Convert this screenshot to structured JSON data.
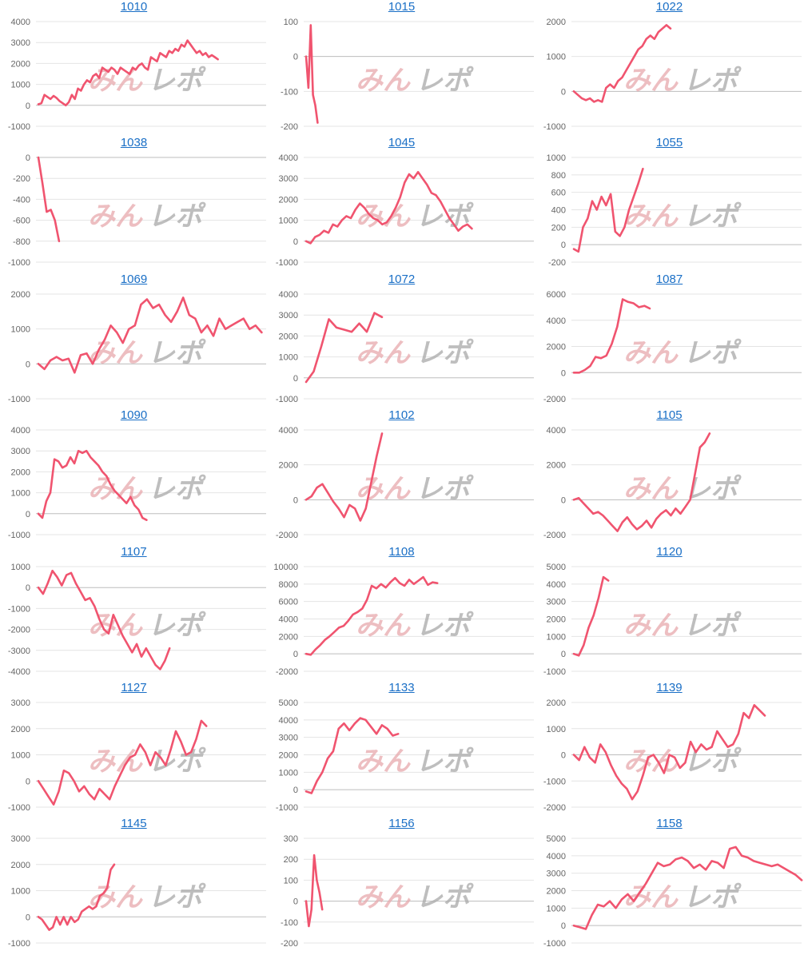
{
  "watermark": {
    "part1": "みん",
    "part2": "レポ",
    "color1": "#e8a9ad",
    "color2": "#a9a9a9"
  },
  "line_color": "#f0546f",
  "title_color": "#1a6fc6",
  "chart_data": [
    {
      "type": "line",
      "title": "1010",
      "yticks": [
        4000,
        3000,
        2000,
        1000,
        0,
        -1000
      ],
      "ylim": [
        -1000,
        4000
      ],
      "values": [
        50,
        100,
        500,
        400,
        300,
        450,
        350,
        200,
        100,
        0,
        150,
        500,
        300,
        800,
        700,
        1000,
        1200,
        1100,
        1400,
        1500,
        1300,
        1800,
        1700,
        1600,
        1800,
        1700,
        1500,
        1800,
        1700,
        1600,
        1500,
        1800,
        1700,
        1900,
        2000,
        1800,
        1700,
        2300,
        2200,
        2100,
        2500,
        2400,
        2300,
        2600,
        2500,
        2700,
        2600,
        2900,
        2800,
        3100,
        2900,
        2700,
        2500,
        2600,
        2400,
        2500,
        2300,
        2400,
        2300,
        2200
      ]
    },
    {
      "type": "line",
      "title": "1015",
      "yticks": [
        100,
        0,
        -100,
        -200
      ],
      "ylim": [
        -200,
        100
      ],
      "values": [
        0,
        -90,
        90,
        -110,
        -140,
        -190
      ]
    },
    {
      "type": "line",
      "title": "1022",
      "yticks": [
        2000,
        1000,
        0,
        -1000
      ],
      "ylim": [
        -1000,
        2000
      ],
      "values": [
        0,
        -100,
        -200,
        -250,
        -200,
        -300,
        -250,
        -300,
        100,
        200,
        100,
        300,
        400,
        600,
        800,
        1000,
        1200,
        1300,
        1500,
        1600,
        1500,
        1700,
        1800,
        1900,
        1800
      ]
    },
    {
      "type": "line",
      "title": "1038",
      "yticks": [
        0,
        -200,
        -400,
        -600,
        -800,
        -1000
      ],
      "ylim": [
        -1000,
        0
      ],
      "values": [
        0,
        -250,
        -520,
        -500,
        -600,
        -800
      ]
    },
    {
      "type": "line",
      "title": "1045",
      "yticks": [
        4000,
        3000,
        2000,
        1000,
        0,
        -1000
      ],
      "ylim": [
        -1000,
        4000
      ],
      "values": [
        0,
        -100,
        200,
        300,
        500,
        400,
        800,
        700,
        1000,
        1200,
        1100,
        1500,
        1800,
        1600,
        1300,
        1100,
        1000,
        800,
        900,
        1200,
        1600,
        2100,
        2800,
        3200,
        3000,
        3300,
        3000,
        2700,
        2300,
        2200,
        1900,
        1500,
        1100,
        800,
        500,
        700,
        800,
        600
      ]
    },
    {
      "type": "line",
      "title": "1055",
      "yticks": [
        1000,
        800,
        600,
        400,
        200,
        0,
        -200
      ],
      "ylim": [
        -200,
        1000
      ],
      "values": [
        -50,
        -80,
        200,
        300,
        500,
        400,
        550,
        450,
        580,
        150,
        100,
        200,
        400,
        550,
        700,
        870
      ]
    },
    {
      "type": "line",
      "title": "1069",
      "yticks": [
        2000,
        1000,
        0,
        -1000
      ],
      "ylim": [
        -1000,
        2000
      ],
      "values": [
        0,
        -150,
        100,
        200,
        100,
        150,
        -250,
        250,
        300,
        0,
        400,
        700,
        1100,
        900,
        600,
        1000,
        1100,
        1700,
        1850,
        1600,
        1700,
        1400,
        1200,
        1500,
        1900,
        1400,
        1300,
        900,
        1100,
        800,
        1300,
        1000,
        1100,
        1200,
        1300,
        1000,
        1100,
        900
      ]
    },
    {
      "type": "line",
      "title": "1072",
      "yticks": [
        4000,
        3000,
        2000,
        1000,
        0,
        -1000
      ],
      "ylim": [
        -1000,
        4000
      ],
      "values": [
        -200,
        300,
        1500,
        2800,
        2400,
        2300,
        2200,
        2600,
        2200,
        3100,
        2900
      ]
    },
    {
      "type": "line",
      "title": "1087",
      "yticks": [
        6000,
        4000,
        2000,
        0,
        -2000
      ],
      "ylim": [
        -2000,
        6000
      ],
      "values": [
        0,
        0,
        200,
        500,
        1200,
        1100,
        1300,
        2200,
        3500,
        5600,
        5400,
        5300,
        5000,
        5100,
        4900
      ]
    },
    {
      "type": "line",
      "title": "1090",
      "yticks": [
        4000,
        3000,
        2000,
        1000,
        0,
        -1000
      ],
      "ylim": [
        -1000,
        4000
      ],
      "values": [
        0,
        -200,
        600,
        1000,
        2600,
        2500,
        2200,
        2300,
        2700,
        2400,
        3000,
        2900,
        3000,
        2700,
        2500,
        2300,
        2000,
        1800,
        1400,
        1100,
        900,
        700,
        500,
        800,
        400,
        200,
        -200,
        -300
      ]
    },
    {
      "type": "line",
      "title": "1102",
      "yticks": [
        4000,
        2000,
        0,
        -2000
      ],
      "ylim": [
        -2000,
        4000
      ],
      "values": [
        0,
        200,
        700,
        900,
        400,
        -100,
        -500,
        -1000,
        -300,
        -500,
        -1200,
        -500,
        1000,
        2500,
        3800
      ]
    },
    {
      "type": "line",
      "title": "1105",
      "yticks": [
        4000,
        2000,
        0,
        -2000
      ],
      "ylim": [
        -2000,
        4000
      ],
      "values": [
        0,
        100,
        -200,
        -500,
        -800,
        -700,
        -900,
        -1200,
        -1500,
        -1800,
        -1300,
        -1000,
        -1400,
        -1700,
        -1500,
        -1200,
        -1600,
        -1100,
        -800,
        -600,
        -900,
        -500,
        -800,
        -400,
        0,
        1500,
        3000,
        3300,
        3800
      ]
    },
    {
      "type": "line",
      "title": "1107",
      "yticks": [
        1000,
        0,
        -1000,
        -2000,
        -3000,
        -4000
      ],
      "ylim": [
        -4000,
        1000
      ],
      "values": [
        0,
        -300,
        200,
        800,
        500,
        100,
        600,
        700,
        200,
        -200,
        -600,
        -500,
        -900,
        -1500,
        -2000,
        -2200,
        -1300,
        -1800,
        -2300,
        -2700,
        -3100,
        -2700,
        -3300,
        -2900,
        -3300,
        -3700,
        -3900,
        -3500,
        -2900
      ]
    },
    {
      "type": "line",
      "title": "1108",
      "yticks": [
        10000,
        8000,
        6000,
        4000,
        2000,
        0,
        -2000
      ],
      "ylim": [
        -2000,
        10000
      ],
      "values": [
        0,
        -100,
        500,
        1000,
        1600,
        2000,
        2500,
        3000,
        3200,
        3800,
        4500,
        4800,
        5200,
        6200,
        7800,
        7500,
        8000,
        7600,
        8200,
        8700,
        8100,
        7800,
        8500,
        8000,
        8400,
        8800,
        7900,
        8200,
        8100
      ]
    },
    {
      "type": "line",
      "title": "1120",
      "yticks": [
        5000,
        4000,
        3000,
        2000,
        1000,
        0,
        -1000
      ],
      "ylim": [
        -1000,
        5000
      ],
      "values": [
        0,
        -100,
        500,
        1500,
        2200,
        3200,
        4400,
        4200
      ]
    },
    {
      "type": "line",
      "title": "1127",
      "yticks": [
        3000,
        2000,
        1000,
        0,
        -1000
      ],
      "ylim": [
        -1000,
        3000
      ],
      "values": [
        0,
        -300,
        -600,
        -900,
        -400,
        400,
        300,
        0,
        -400,
        -200,
        -500,
        -700,
        -300,
        -500,
        -700,
        -200,
        200,
        600,
        900,
        1000,
        1400,
        1100,
        600,
        1100,
        900,
        600,
        1200,
        1900,
        1500,
        1000,
        1100,
        1600,
        2300,
        2100
      ]
    },
    {
      "type": "line",
      "title": "1133",
      "yticks": [
        5000,
        4000,
        3000,
        2000,
        1000,
        0,
        -1000
      ],
      "ylim": [
        -1000,
        5000
      ],
      "values": [
        -100,
        -200,
        500,
        1000,
        1800,
        2200,
        3500,
        3800,
        3400,
        3800,
        4100,
        4000,
        3600,
        3200,
        3700,
        3500,
        3100,
        3200
      ]
    },
    {
      "type": "line",
      "title": "1139",
      "yticks": [
        2000,
        1000,
        0,
        -1000,
        -2000
      ],
      "ylim": [
        -2000,
        2000
      ],
      "values": [
        0,
        -200,
        300,
        -100,
        -300,
        400,
        100,
        -400,
        -800,
        -1100,
        -1300,
        -1700,
        -1400,
        -800,
        -100,
        0,
        -300,
        -700,
        0,
        -100,
        -500,
        -300,
        500,
        100,
        400,
        200,
        300,
        900,
        600,
        300,
        400,
        800,
        1600,
        1400,
        1900,
        1700,
        1500
      ]
    },
    {
      "type": "line",
      "title": "1145",
      "yticks": [
        3000,
        2000,
        1000,
        0,
        -1000
      ],
      "ylim": [
        -1000,
        3000
      ],
      "values": [
        0,
        -100,
        -300,
        -500,
        -400,
        0,
        -300,
        0,
        -300,
        0,
        -200,
        -100,
        200,
        300,
        400,
        300,
        400,
        800,
        900,
        1100,
        1800,
        2000
      ]
    },
    {
      "type": "line",
      "title": "1156",
      "yticks": [
        300,
        200,
        100,
        0,
        -100,
        -200
      ],
      "ylim": [
        -200,
        300
      ],
      "values": [
        0,
        -120,
        -40,
        220,
        100,
        40,
        -40
      ]
    },
    {
      "type": "line",
      "title": "1158",
      "yticks": [
        5000,
        4000,
        3000,
        2000,
        1000,
        0,
        -1000
      ],
      "ylim": [
        -1000,
        5000
      ],
      "values": [
        0,
        -100,
        -200,
        600,
        1200,
        1100,
        1400,
        1000,
        1500,
        1800,
        1400,
        1900,
        2400,
        3000,
        3600,
        3400,
        3500,
        3800,
        3900,
        3700,
        3300,
        3500,
        3200,
        3700,
        3600,
        3300,
        4400,
        4500,
        4000,
        3900,
        3700,
        3600,
        3500,
        3400,
        3500,
        3300,
        3100,
        2900,
        2600
      ]
    }
  ]
}
